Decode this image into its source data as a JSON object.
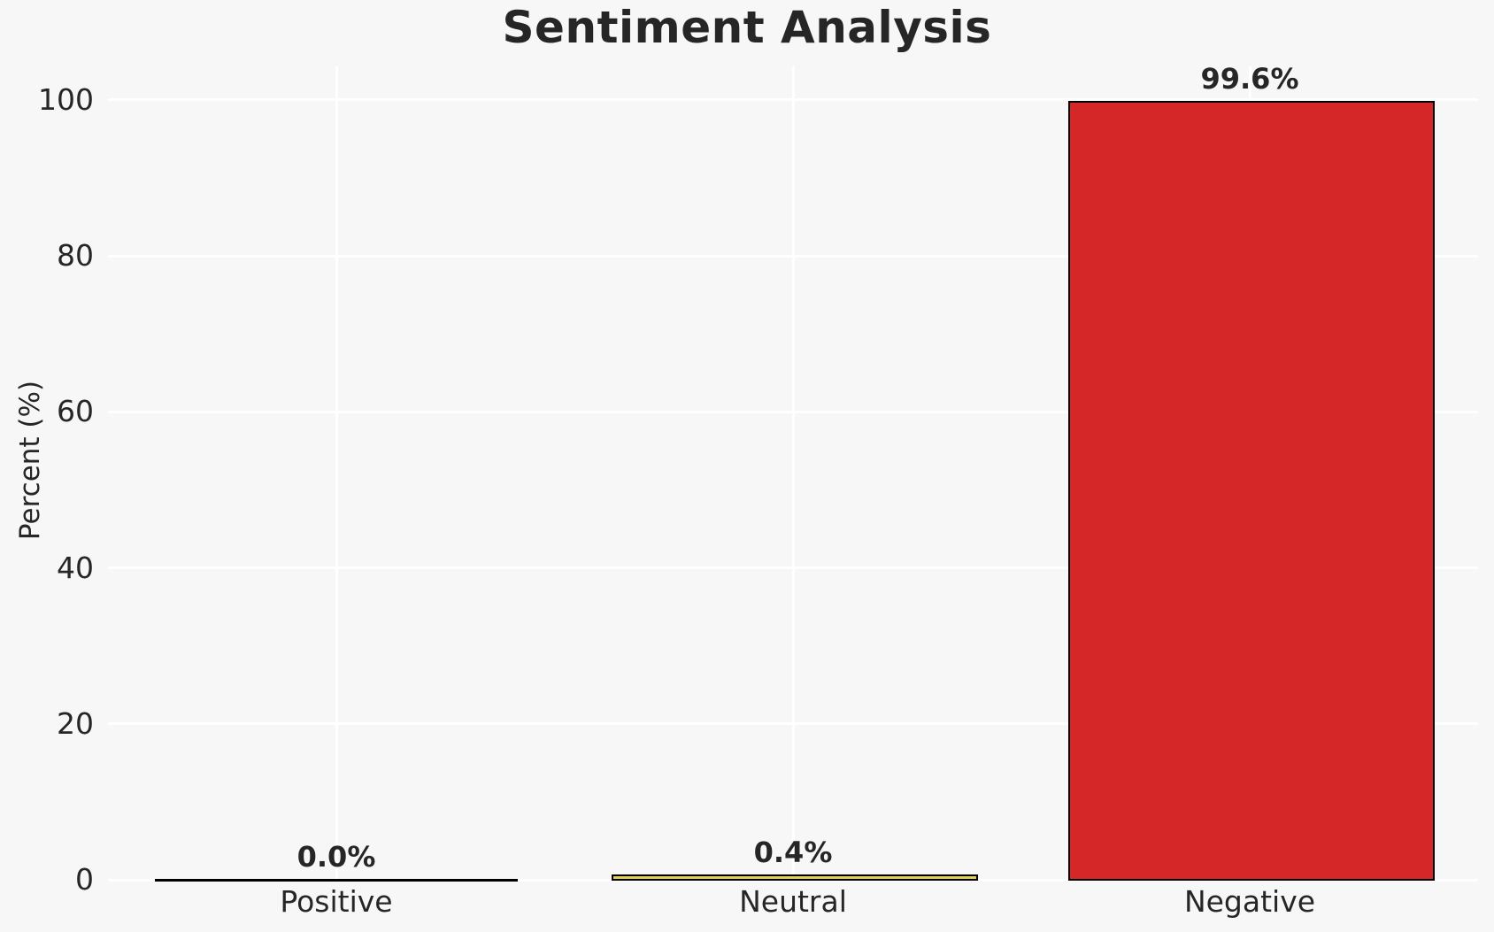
{
  "chart_data": {
    "type": "bar",
    "title": "Sentiment Analysis",
    "xlabel": "",
    "ylabel": "Percent (%)",
    "categories": [
      "Positive",
      "Neutral",
      "Negative"
    ],
    "values": [
      0.0,
      0.4,
      99.6
    ],
    "value_labels": [
      "0.0%",
      "0.4%",
      "99.6%"
    ],
    "bar_colors": [
      "none",
      "#e3d155",
      "#d62728"
    ],
    "bar_edge_color": "#000000",
    "yticks": [
      0,
      20,
      40,
      60,
      80,
      100
    ],
    "ylim": [
      0,
      104.3
    ],
    "grid": true,
    "legend": false,
    "colors": {
      "background": "#f7f7f7",
      "gridline": "#ffffff",
      "text": "#262626"
    }
  }
}
